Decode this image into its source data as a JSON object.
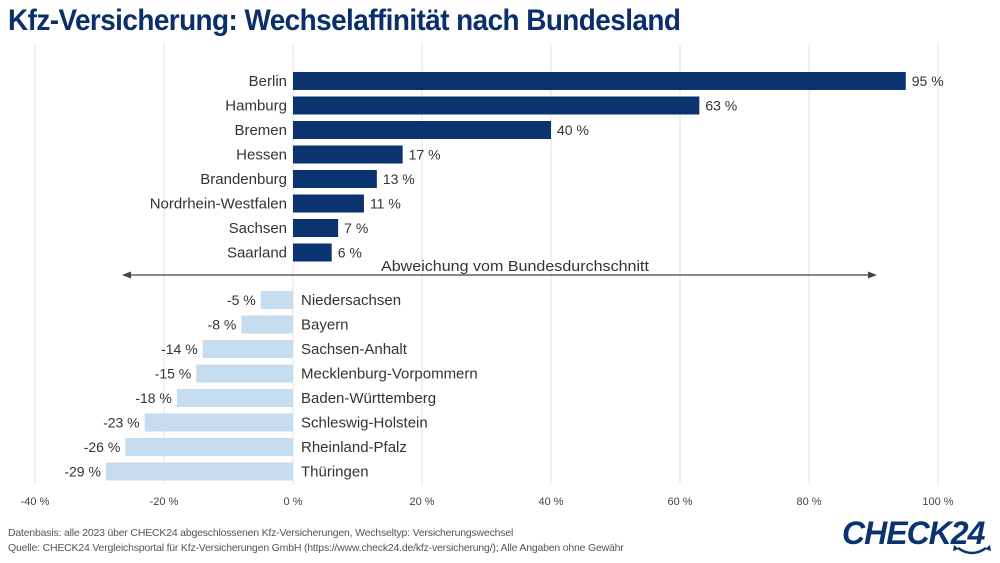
{
  "title": "Kfz-Versicherung: Wechselaffinität nach Bundesland",
  "chart_data": {
    "type": "bar",
    "orientation": "horizontal",
    "title": "Kfz-Versicherung: Wechselaffinität nach Bundesland",
    "xlabel": "",
    "ylabel": "",
    "annotation": "Abweichung vom Bundesdurchschnitt",
    "xlim": [
      -40,
      100
    ],
    "xticks": [
      -40,
      -20,
      0,
      20,
      40,
      60,
      80,
      100
    ],
    "xtick_labels": [
      "-40 %",
      "-20 %",
      "0 %",
      "20 %",
      "40 %",
      "60 %",
      "80 %",
      "100 %"
    ],
    "grid": true,
    "unit": "%",
    "colors": {
      "positive": "#0a3370",
      "negative": "#c6dcef"
    },
    "categories": [
      "Berlin",
      "Hamburg",
      "Bremen",
      "Hessen",
      "Brandenburg",
      "Nordrhein-Westfalen",
      "Sachsen",
      "Saarland",
      "Niedersachsen",
      "Bayern",
      "Sachsen-Anhalt",
      "Mecklenburg-Vorpommern",
      "Baden-Württemberg",
      "Schleswig-Holstein",
      "Rheinland-Pfalz",
      "Thüringen"
    ],
    "values": [
      95,
      63,
      40,
      17,
      13,
      11,
      7,
      6,
      -5,
      -8,
      -14,
      -15,
      -18,
      -23,
      -26,
      -29
    ],
    "value_labels": [
      "95 %",
      "63 %",
      "40 %",
      "17 %",
      "13 %",
      "11 %",
      "7 %",
      "6 %",
      "-5 %",
      "-8 %",
      "-14 %",
      "-15 %",
      "-18 %",
      "-23 %",
      "-26 %",
      "-29 %"
    ]
  },
  "footer": {
    "line1": "Datenbasis: alle 2023 über CHECK24 abgeschlossenen Kfz-Versicherungen, Wechseltyp: Versicherungswechsel",
    "line2": "Quelle: CHECK24 Vergleichsportal für Kfz-Versicherungen GmbH (https://www.check24.de/kfz-versicherung/); Alle Angaben ohne Gewähr"
  },
  "logo": {
    "text": "CHECK24",
    "color": "#0a3370"
  }
}
